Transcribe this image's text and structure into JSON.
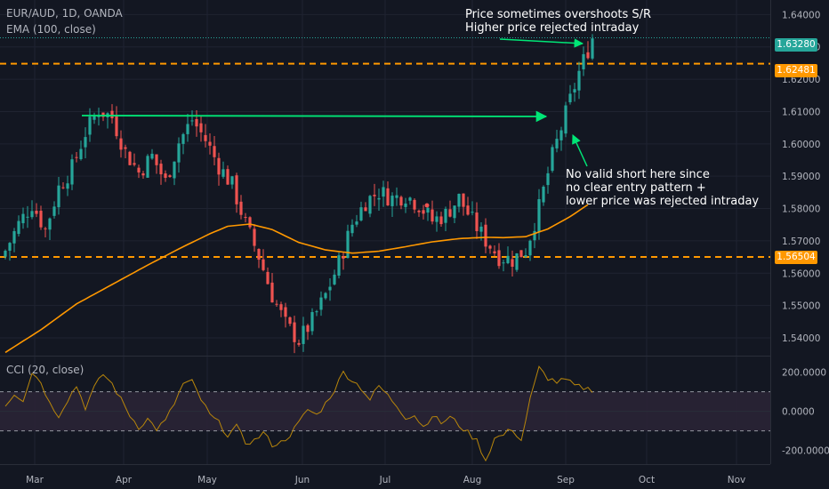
{
  "header": {
    "symbol_line": "EUR/AUD, 1D, OANDA",
    "ema_line": "EMA (100, close)",
    "cci_line": "CCI (20, close)"
  },
  "annotations": {
    "top_1": "Price sometimes overshoots S/R",
    "top_2": "Higher price rejected intraday",
    "mid_1": "No valid short here since",
    "mid_2": "no clear entry pattern +",
    "mid_3": "lower price was rejected intraday"
  },
  "price_tags": {
    "last": "1.63280",
    "resistance": "1.62481",
    "support": "1.56504"
  },
  "colors": {
    "background": "#131722",
    "bull": "#26a69a",
    "bear": "#ef5350",
    "ema": "#ff9800",
    "level": "#ff9800",
    "arrow": "#00e676",
    "last_price": "#26a69a",
    "grid": "#1f2331"
  },
  "chart_data": [
    {
      "type": "candlestick",
      "y_axis_ticks": [
        "1.64000",
        "1.63000",
        "1.62000",
        "1.61000",
        "1.60000",
        "1.59000",
        "1.58000",
        "1.57000",
        "1.56000",
        "1.55000",
        "1.54000"
      ],
      "ylim": [
        1.5345,
        1.6445
      ],
      "x_axis_ticks": [
        "Mar",
        "Apr",
        "May",
        "Jun",
        "Jul",
        "Aug",
        "Sep",
        "Oct",
        "Nov"
      ],
      "horizontal_levels": [
        1.62481,
        1.56504
      ],
      "last_price": 1.6328,
      "ema_period": 100,
      "close_path": [
        [
          0,
          1.567
        ],
        [
          3,
          1.5752
        ],
        [
          6,
          1.5815
        ],
        [
          9,
          1.5735
        ],
        [
          12,
          1.5865
        ],
        [
          15,
          1.5925
        ],
        [
          18,
          1.6035
        ],
        [
          21,
          1.6105
        ],
        [
          24,
          1.6082
        ],
        [
          27,
          1.5975
        ],
        [
          30,
          1.5912
        ],
        [
          33,
          1.5962
        ],
        [
          36,
          1.5882
        ],
        [
          39,
          1.6005
        ],
        [
          42,
          1.6075
        ],
        [
          45,
          1.6012
        ],
        [
          48,
          1.5932
        ],
        [
          51,
          1.5872
        ],
        [
          54,
          1.5752
        ],
        [
          57,
          1.5652
        ],
        [
          60,
          1.5532
        ],
        [
          63,
          1.5442
        ],
        [
          66,
          1.5392
        ],
        [
          69,
          1.5452
        ],
        [
          72,
          1.5532
        ],
        [
          75,
          1.5632
        ],
        [
          78,
          1.5752
        ],
        [
          81,
          1.5822
        ],
        [
          84,
          1.5852
        ],
        [
          87,
          1.5832
        ],
        [
          90,
          1.5842
        ],
        [
          93,
          1.5812
        ],
        [
          96,
          1.5762
        ],
        [
          99,
          1.5782
        ],
        [
          102,
          1.5832
        ],
        [
          105,
          1.5762
        ],
        [
          108,
          1.5702
        ],
        [
          111,
          1.5652
        ],
        [
          114,
          1.5642
        ],
        [
          117,
          1.5672
        ],
        [
          120,
          1.5802
        ],
        [
          123,
          1.5962
        ],
        [
          126,
          1.6092
        ],
        [
          129,
          1.6222
        ],
        [
          132,
          1.6328
        ]
      ],
      "ema_path": [
        [
          0,
          1.5355
        ],
        [
          8,
          1.5425
        ],
        [
          16,
          1.5505
        ],
        [
          24,
          1.5565
        ],
        [
          32,
          1.5625
        ],
        [
          40,
          1.5682
        ],
        [
          46,
          1.5722
        ],
        [
          50,
          1.5745
        ],
        [
          55,
          1.5752
        ],
        [
          60,
          1.5735
        ],
        [
          66,
          1.5695
        ],
        [
          72,
          1.5672
        ],
        [
          78,
          1.5662
        ],
        [
          84,
          1.5668
        ],
        [
          90,
          1.5682
        ],
        [
          96,
          1.5697
        ],
        [
          102,
          1.5707
        ],
        [
          108,
          1.5711
        ],
        [
          112,
          1.571
        ],
        [
          117,
          1.5713
        ],
        [
          122,
          1.5737
        ],
        [
          127,
          1.5775
        ],
        [
          131,
          1.5812
        ]
      ],
      "n_bars": 133
    },
    {
      "type": "line",
      "title": "CCI (20, close)",
      "y_axis_ticks": [
        "200.0000",
        "0.0000",
        "-200.0000"
      ],
      "ylim": [
        -270,
        280
      ],
      "bands": [
        100,
        -100
      ],
      "cci_path": [
        [
          0,
          30
        ],
        [
          2,
          90
        ],
        [
          4,
          60
        ],
        [
          6,
          200
        ],
        [
          8,
          150
        ],
        [
          10,
          40
        ],
        [
          12,
          -20
        ],
        [
          14,
          60
        ],
        [
          16,
          130
        ],
        [
          18,
          20
        ],
        [
          20,
          120
        ],
        [
          22,
          190
        ],
        [
          24,
          140
        ],
        [
          26,
          60
        ],
        [
          28,
          -20
        ],
        [
          30,
          -80
        ],
        [
          32,
          -40
        ],
        [
          34,
          -90
        ],
        [
          36,
          -50
        ],
        [
          38,
          40
        ],
        [
          40,
          140
        ],
        [
          42,
          150
        ],
        [
          44,
          60
        ],
        [
          46,
          -20
        ],
        [
          48,
          -60
        ],
        [
          50,
          -120
        ],
        [
          52,
          -80
        ],
        [
          54,
          -160
        ],
        [
          56,
          -150
        ],
        [
          58,
          -110
        ],
        [
          60,
          -170
        ],
        [
          62,
          -160
        ],
        [
          64,
          -120
        ],
        [
          66,
          -60
        ],
        [
          68,
          10
        ],
        [
          70,
          -20
        ],
        [
          72,
          40
        ],
        [
          74,
          110
        ],
        [
          76,
          200
        ],
        [
          78,
          160
        ],
        [
          80,
          120
        ],
        [
          82,
          60
        ],
        [
          84,
          130
        ],
        [
          86,
          80
        ],
        [
          88,
          30
        ],
        [
          90,
          -30
        ],
        [
          92,
          -20
        ],
        [
          94,
          -80
        ],
        [
          96,
          -20
        ],
        [
          98,
          -60
        ],
        [
          100,
          -30
        ],
        [
          102,
          -70
        ],
        [
          104,
          -110
        ],
        [
          106,
          -150
        ],
        [
          108,
          -250
        ],
        [
          110,
          -140
        ],
        [
          112,
          -120
        ],
        [
          114,
          -90
        ],
        [
          116,
          -150
        ],
        [
          118,
          60
        ],
        [
          120,
          220
        ],
        [
          122,
          170
        ],
        [
          124,
          150
        ],
        [
          126,
          160
        ],
        [
          128,
          130
        ],
        [
          130,
          120
        ],
        [
          132,
          110
        ]
      ]
    }
  ]
}
